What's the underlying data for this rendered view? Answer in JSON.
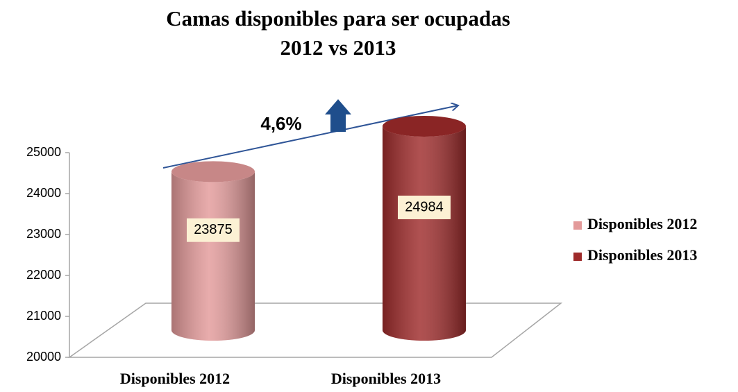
{
  "chart_data": {
    "type": "cylinder",
    "title": [
      "Camas disponibles para ser ocupadas",
      "2012 vs 2013"
    ],
    "annotation": "4,6%",
    "categories": [
      "Disponibles 2012",
      "Disponibles 2013"
    ],
    "series": [
      {
        "name": "Disponibles 2012",
        "color": "#e39a9a",
        "values": [
          23875,
          null
        ]
      },
      {
        "name": "Disponibles 2013",
        "color": "#9e2b2b",
        "values": [
          null,
          24984
        ]
      }
    ],
    "ylim": [
      20000,
      25000
    ],
    "yticks": [
      20000,
      21000,
      22000,
      23000,
      24000,
      25000
    ],
    "legend": "right"
  }
}
